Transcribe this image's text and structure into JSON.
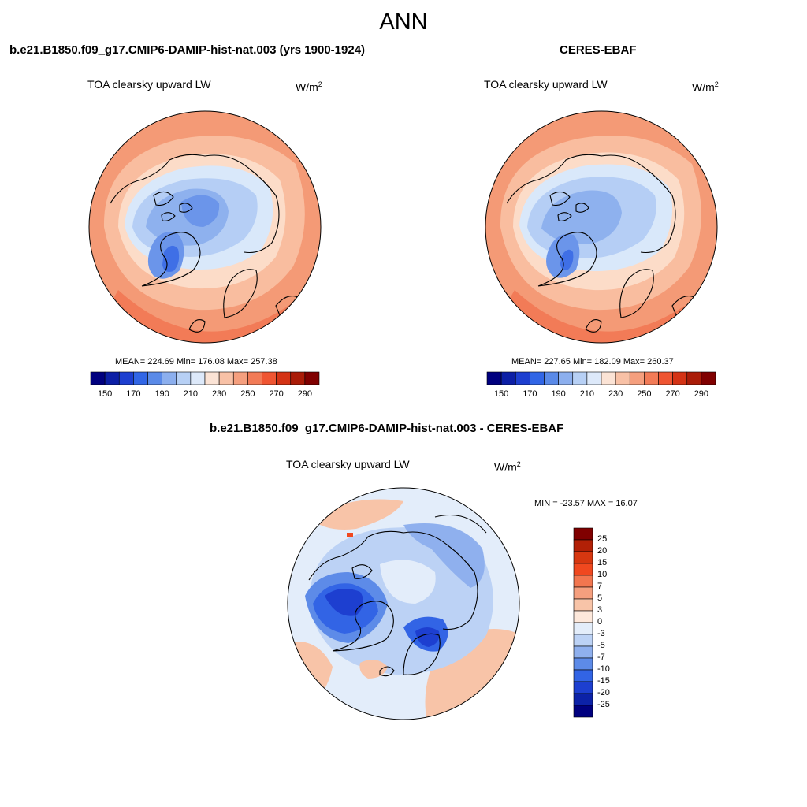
{
  "page": {
    "title": "ANN"
  },
  "unit": {
    "base": "W/m",
    "exp": "2"
  },
  "panels": [
    {
      "title": "b.e21.B1850.f09_g17.CMIP6-DAMIP-hist-nat.003 (yrs 1900-1924)",
      "variable": "TOA clearsky upward LW",
      "stats": "MEAN= 224.69  Min= 176.08  Max= 257.38"
    },
    {
      "title": "CERES-EBAF",
      "variable": "TOA clearsky upward LW",
      "stats": "MEAN= 227.65  Min= 182.09  Max= 260.37"
    },
    {
      "title": "b.e21.B1850.f09_g17.CMIP6-DAMIP-hist-nat.003 - CERES-EBAF",
      "variable": "TOA clearsky upward LW",
      "stats": "MIN = -23.57 MAX =  16.07"
    }
  ],
  "colorbar_abs": {
    "ticks": [
      "150",
      "170",
      "190",
      "210",
      "230",
      "250",
      "270",
      "290"
    ],
    "colors": [
      "#00007f",
      "#0c1fa6",
      "#1d3fd0",
      "#3166e6",
      "#5a8ae8",
      "#8cafee",
      "#b7d0f5",
      "#dde9fa",
      "#fbe3d5",
      "#f8c1a6",
      "#f59f7e",
      "#f27b57",
      "#ef5532",
      "#d43315",
      "#aa1c08",
      "#800000"
    ]
  },
  "colorbar_diff": {
    "ticks": [
      "25",
      "20",
      "15",
      "10",
      "7",
      "5",
      "3",
      "0",
      "-3",
      "-5",
      "-7",
      "-10",
      "-15",
      "-20",
      "-25"
    ],
    "colors": [
      "#800000",
      "#b22006",
      "#d73710",
      "#f0481f",
      "#f2764f",
      "#f59f7e",
      "#f8c4a8",
      "#fde8db",
      "#e3edfa",
      "#bcd2f5",
      "#8fb0ee",
      "#5d8be8",
      "#3264e5",
      "#1d3fd0",
      "#0c22a8",
      "#00007f"
    ]
  },
  "map_fields": {
    "abs_colors": {
      "outer": "#f49a76",
      "ring2": "#f9bd9f",
      "ring3": "#fcdcc8",
      "pale": "#d9e8fa",
      "light_blue": "#b5cef5",
      "mid_blue": "#8eb1ee",
      "blue": "#6b95ea",
      "deep_blue": "#3f6fe6",
      "warm": "#f27b57"
    },
    "diff_colors": {
      "base": "#e3edfa",
      "light": "#bcd2f5",
      "mid": "#8fb0ee",
      "blue": "#5d8be8",
      "strong": "#3264e5",
      "deep": "#1d3fd0",
      "warm": "#f8c4a8",
      "hot": "#f0481f"
    }
  }
}
